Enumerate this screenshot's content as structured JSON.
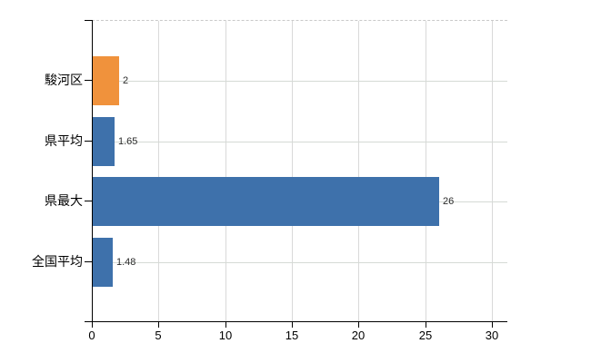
{
  "chart_data": {
    "type": "bar",
    "orientation": "horizontal",
    "title": "",
    "xlabel": "",
    "ylabel": "",
    "categories": [
      "駿河区",
      "県平均",
      "県最大",
      "全国平均"
    ],
    "values": [
      2,
      1.65,
      26,
      1.48
    ],
    "value_labels": [
      "2",
      "1.65",
      "26",
      "1.48"
    ],
    "series": [
      {
        "name": "値",
        "values": [
          2,
          1.65,
          26,
          1.48
        ]
      }
    ],
    "x_ticks": [
      0,
      5,
      10,
      15,
      20,
      25,
      30
    ],
    "x_tick_labels": [
      "0",
      "5",
      "10",
      "15",
      "20",
      "25",
      "30"
    ],
    "xlim": [
      0,
      31.2
    ],
    "grid": true,
    "legend": "none",
    "highlight_category": "駿河区",
    "colors": {
      "highlight_bar": "#F0923C",
      "default_bar": "#3E71AB",
      "vertical_grid": "#d9d9d9",
      "horizontal_grid": "#d5dad5",
      "axis": "#000000",
      "top_border_dashed": "#c9c9c9",
      "value_label_text": "#2b2b2b",
      "category_label_text": "#000000",
      "background": "#ffffff"
    }
  }
}
